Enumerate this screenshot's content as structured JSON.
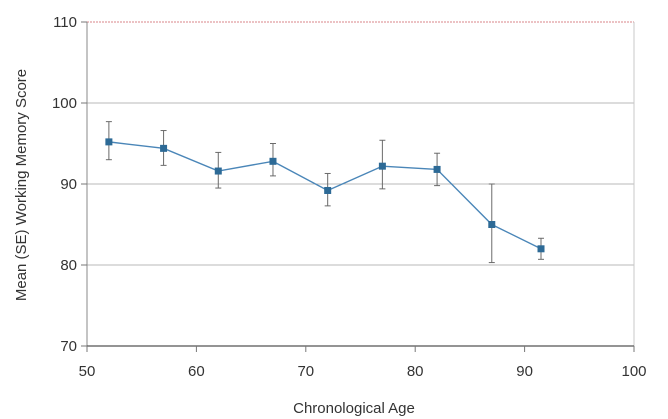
{
  "chart_data": {
    "type": "line",
    "title": "",
    "xlabel": "Chronological Age",
    "ylabel": "Mean (SE) Working Memory Score",
    "xlim": [
      50,
      100
    ],
    "ylim": [
      70,
      110
    ],
    "xticks": [
      50,
      60,
      70,
      80,
      90,
      100
    ],
    "yticks": [
      70,
      80,
      90,
      100,
      110
    ],
    "grid": "horizontal",
    "legend": "none",
    "series": [
      {
        "x": [
          52,
          57,
          62,
          67,
          72,
          77,
          82,
          87,
          91.5
        ],
        "y": [
          95.2,
          94.4,
          91.6,
          92.8,
          89.2,
          92.2,
          91.8,
          85.0,
          82.0
        ],
        "error_low": [
          93.0,
          92.3,
          89.5,
          91.0,
          87.3,
          89.4,
          89.8,
          80.3,
          80.7
        ],
        "error_high": [
          97.7,
          96.6,
          93.9,
          95.0,
          91.3,
          95.4,
          93.8,
          90.0,
          83.3
        ]
      }
    ],
    "colors": {
      "line": "#4a86b8",
      "marker": "#2d6a96",
      "error_bar": "#6a6a6a",
      "grid": "#a0a0a0",
      "frame": "#c9c9c9",
      "top_border": "#d9848a"
    }
  }
}
